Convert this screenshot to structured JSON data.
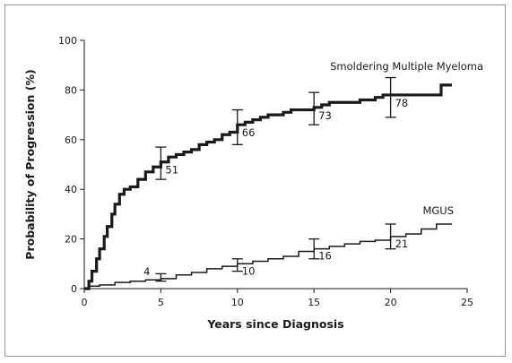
{
  "chart_data": {
    "type": "line",
    "title": "",
    "xlabel": "Years since Diagnosis",
    "ylabel": "Probability of Progression (%)",
    "xlim": [
      0,
      25
    ],
    "ylim": [
      0,
      100
    ],
    "xticks": [
      0,
      5,
      10,
      15,
      20,
      25
    ],
    "yticks": [
      0,
      20,
      40,
      60,
      80,
      100
    ],
    "grid": false,
    "colors": {
      "line": "#1a1a1a"
    },
    "series": [
      {
        "name": "Smoldering Multiple Myeloma",
        "style": "thick-step",
        "points": [
          [
            0,
            0
          ],
          [
            0.3,
            3
          ],
          [
            0.5,
            7
          ],
          [
            0.8,
            12
          ],
          [
            1.0,
            16
          ],
          [
            1.3,
            21
          ],
          [
            1.5,
            25
          ],
          [
            1.8,
            30
          ],
          [
            2.0,
            34
          ],
          [
            2.3,
            38
          ],
          [
            2.6,
            40
          ],
          [
            3.0,
            41
          ],
          [
            3.5,
            44
          ],
          [
            4.0,
            47
          ],
          [
            4.5,
            49
          ],
          [
            5.0,
            51
          ],
          [
            5.5,
            53
          ],
          [
            6.0,
            54
          ],
          [
            6.5,
            55
          ],
          [
            7.0,
            56
          ],
          [
            7.5,
            58
          ],
          [
            8.0,
            59
          ],
          [
            8.5,
            60
          ],
          [
            9.0,
            62
          ],
          [
            9.5,
            63
          ],
          [
            10.0,
            66
          ],
          [
            10.5,
            67
          ],
          [
            11.0,
            68
          ],
          [
            11.5,
            69
          ],
          [
            12.0,
            70
          ],
          [
            12.5,
            70
          ],
          [
            13.0,
            71
          ],
          [
            13.5,
            72
          ],
          [
            14.0,
            72
          ],
          [
            15.0,
            73
          ],
          [
            15.5,
            74
          ],
          [
            16.0,
            75
          ],
          [
            18.0,
            76
          ],
          [
            19.0,
            77
          ],
          [
            19.5,
            78
          ],
          [
            23.0,
            78
          ],
          [
            23.3,
            82
          ],
          [
            24.0,
            82
          ]
        ],
        "error_bars": [
          {
            "x": 5,
            "y": 51,
            "lo": 44,
            "hi": 57,
            "label": "51"
          },
          {
            "x": 10,
            "y": 66,
            "lo": 58,
            "hi": 72,
            "label": "66"
          },
          {
            "x": 15,
            "y": 73,
            "lo": 66,
            "hi": 79,
            "label": "73"
          },
          {
            "x": 20,
            "y": 78,
            "lo": 69,
            "hi": 85,
            "label": "78"
          }
        ]
      },
      {
        "name": "MGUS",
        "style": "thin-step",
        "points": [
          [
            0,
            0
          ],
          [
            0.3,
            1
          ],
          [
            1,
            1.5
          ],
          [
            2,
            2.5
          ],
          [
            3,
            3
          ],
          [
            4,
            3.5
          ],
          [
            5,
            4
          ],
          [
            6,
            5.5
          ],
          [
            7,
            6.5
          ],
          [
            8,
            8
          ],
          [
            9,
            9
          ],
          [
            10,
            10
          ],
          [
            11,
            11
          ],
          [
            12,
            12
          ],
          [
            13,
            13
          ],
          [
            14,
            15
          ],
          [
            15,
            16
          ],
          [
            16,
            17
          ],
          [
            17,
            18
          ],
          [
            18,
            19
          ],
          [
            19,
            19.5
          ],
          [
            20,
            21
          ],
          [
            21,
            22
          ],
          [
            22,
            24
          ],
          [
            23,
            26
          ],
          [
            24,
            26
          ]
        ],
        "error_bars": [
          {
            "x": 5,
            "y": 4,
            "lo": 3,
            "hi": 6,
            "label": "4"
          },
          {
            "x": 10,
            "y": 10,
            "lo": 7,
            "hi": 12,
            "label": "10"
          },
          {
            "x": 15,
            "y": 16,
            "lo": 12,
            "hi": 20,
            "label": "16"
          },
          {
            "x": 20,
            "y": 21,
            "lo": 16,
            "hi": 26,
            "label": "21"
          }
        ]
      }
    ]
  }
}
